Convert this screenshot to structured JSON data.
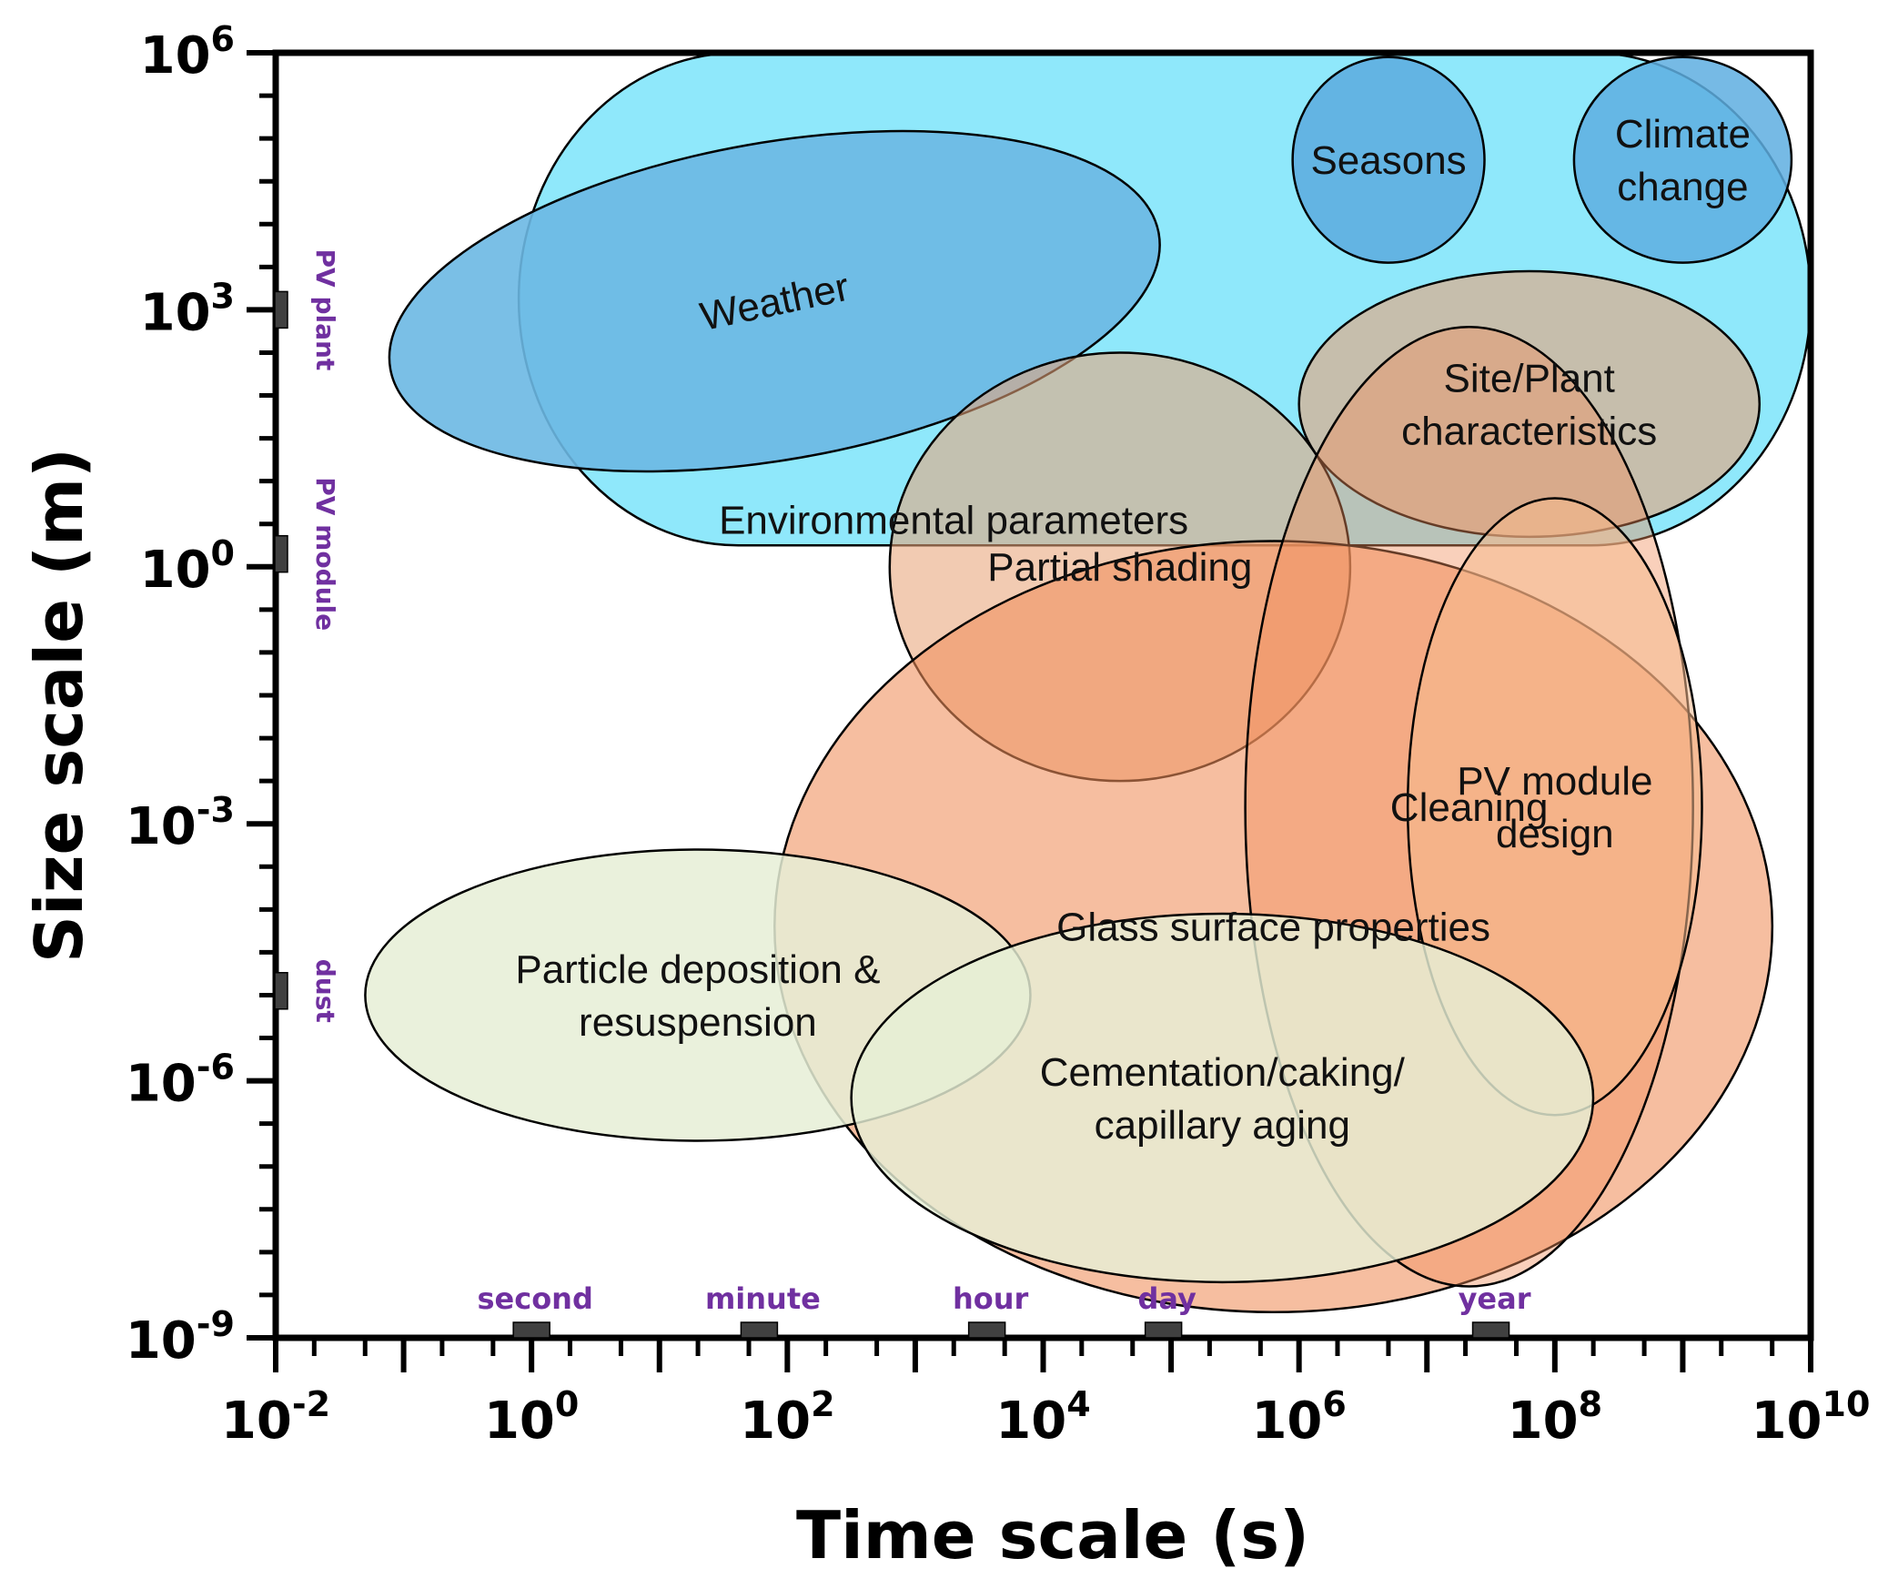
{
  "chart_data": {
    "type": "scatter",
    "subtype": "log-log scale region map (ellipses)",
    "xlabel": "Time scale (s)",
    "ylabel": "Size scale (m)",
    "x_scale": "log",
    "y_scale": "log",
    "xlim_log10": [
      -2,
      10
    ],
    "ylim_log10": [
      -9,
      6
    ],
    "x_ticks": [
      {
        "exp": -2,
        "base": "10",
        "sup": "-2"
      },
      {
        "exp": 0,
        "base": "10",
        "sup": "0"
      },
      {
        "exp": 2,
        "base": "10",
        "sup": "2"
      },
      {
        "exp": 4,
        "base": "10",
        "sup": "4"
      },
      {
        "exp": 6,
        "base": "10",
        "sup": "6"
      },
      {
        "exp": 8,
        "base": "10",
        "sup": "8"
      },
      {
        "exp": 10,
        "base": "10",
        "sup": "10"
      }
    ],
    "y_ticks": [
      {
        "exp": 6,
        "base": "10",
        "sup": "6"
      },
      {
        "exp": 3,
        "base": "10",
        "sup": "3"
      },
      {
        "exp": 0,
        "base": "10",
        "sup": "0"
      },
      {
        "exp": -3,
        "base": "10",
        "sup": "-3"
      },
      {
        "exp": -6,
        "base": "10",
        "sup": "-6"
      },
      {
        "exp": -9,
        "base": "10",
        "sup": "-9"
      }
    ],
    "x_markers": [
      {
        "label": "second",
        "log10_value": 0.0
      },
      {
        "label": "minute",
        "log10_value": 1.78
      },
      {
        "label": "hour",
        "log10_value": 3.56
      },
      {
        "label": "day",
        "log10_value": 4.94
      },
      {
        "label": "year",
        "log10_value": 7.5
      }
    ],
    "y_markers": [
      {
        "label": "PV plant",
        "log10_value": 3.0
      },
      {
        "label": "PV module",
        "log10_value": 0.15
      },
      {
        "label": "dust",
        "log10_value": -4.95
      }
    ],
    "regions": [
      {
        "id": "environmental-parameters",
        "label": "Environmental parameters",
        "shape": "rounded-rect",
        "x_log10": [
          -0.1,
          10.0
        ],
        "y_log10": [
          0.25,
          6.0
        ],
        "color": "#86E6FB",
        "opacity": 0.92,
        "label_color": "#4F6E85",
        "label_at_log10": [
          3.3,
          0.55
        ],
        "lines": [
          "Environmental parameters"
        ]
      },
      {
        "id": "weather",
        "label": "Weather",
        "shape": "ellipse",
        "center_log10": [
          1.9,
          3.1
        ],
        "radius_log10": [
          3.05,
          1.85
        ],
        "rotation_deg": -10,
        "color": "#6CB8E3",
        "opacity": 0.9,
        "lines": [
          "Weather"
        ],
        "label_rotation_deg": -12
      },
      {
        "id": "seasons",
        "label": "Seasons",
        "shape": "circle",
        "center_log10": [
          6.7,
          4.75
        ],
        "radius_log10": [
          0.75,
          1.2
        ],
        "rotation_deg": 0,
        "color": "#5EAEE0",
        "opacity": 0.9,
        "lines": [
          "Seasons"
        ]
      },
      {
        "id": "climate-change",
        "label": "Climate change",
        "shape": "circle",
        "center_log10": [
          9.0,
          4.75
        ],
        "radius_log10": [
          0.85,
          1.2
        ],
        "rotation_deg": 0,
        "color": "#5EAEE0",
        "opacity": 0.85,
        "lines": [
          "Climate",
          "change"
        ]
      },
      {
        "id": "site-plant-characteristics",
        "label": "Site/Plant characteristics",
        "shape": "ellipse",
        "center_log10": [
          7.8,
          1.9
        ],
        "radius_log10": [
          1.8,
          1.55
        ],
        "rotation_deg": 0,
        "color": "#E8A57A",
        "opacity": 0.62,
        "lines": [
          "Site/Plant",
          "characteristics"
        ]
      },
      {
        "id": "partial-shading",
        "label": "Partial shading",
        "shape": "ellipse",
        "center_log10": [
          4.6,
          0.0
        ],
        "radius_log10": [
          1.8,
          2.5
        ],
        "rotation_deg": 0,
        "color": "#E8A57A",
        "opacity": 0.58,
        "lines": [
          "Partial shading"
        ]
      },
      {
        "id": "glass-surface-properties",
        "label": "Glass surface properties",
        "shape": "ellipse",
        "center_log10": [
          5.8,
          -4.2
        ],
        "radius_log10": [
          3.9,
          4.5
        ],
        "rotation_deg": 0,
        "color": "#F08F5C",
        "opacity": 0.58,
        "lines": [
          "Glass surface properties"
        ]
      },
      {
        "id": "cleaning",
        "label": "Cleaning",
        "shape": "ellipse",
        "center_log10": [
          7.33,
          -2.8
        ],
        "radius_log10": [
          1.75,
          5.6
        ],
        "rotation_deg": 0,
        "color": "#F08F5C",
        "opacity": 0.42,
        "lines": [
          "Cleaning"
        ]
      },
      {
        "id": "pv-module-design",
        "label": "PV module design",
        "shape": "ellipse",
        "center_log10": [
          8.0,
          -2.8
        ],
        "radius_log10": [
          1.15,
          3.6
        ],
        "rotation_deg": 0,
        "color": "#F5B98E",
        "opacity": 0.55,
        "lines": [
          "PV module",
          "design"
        ]
      },
      {
        "id": "particle-deposition",
        "label": "Particle deposition & resuspension",
        "shape": "ellipse",
        "center_log10": [
          1.3,
          -5.0
        ],
        "radius_log10": [
          2.6,
          1.7
        ],
        "rotation_deg": 0,
        "color": "#E6EFD6",
        "opacity": 0.85,
        "lines": [
          "Particle deposition &",
          "resuspension"
        ]
      },
      {
        "id": "cementation-caking",
        "label": "Cementation/caking/ capillary aging",
        "shape": "ellipse",
        "center_log10": [
          5.4,
          -6.2
        ],
        "radius_log10": [
          2.9,
          2.15
        ],
        "rotation_deg": 0,
        "color": "#E6EFD6",
        "opacity": 0.82,
        "lines": [
          "Cementation/caking/",
          "capillary aging"
        ]
      }
    ]
  }
}
